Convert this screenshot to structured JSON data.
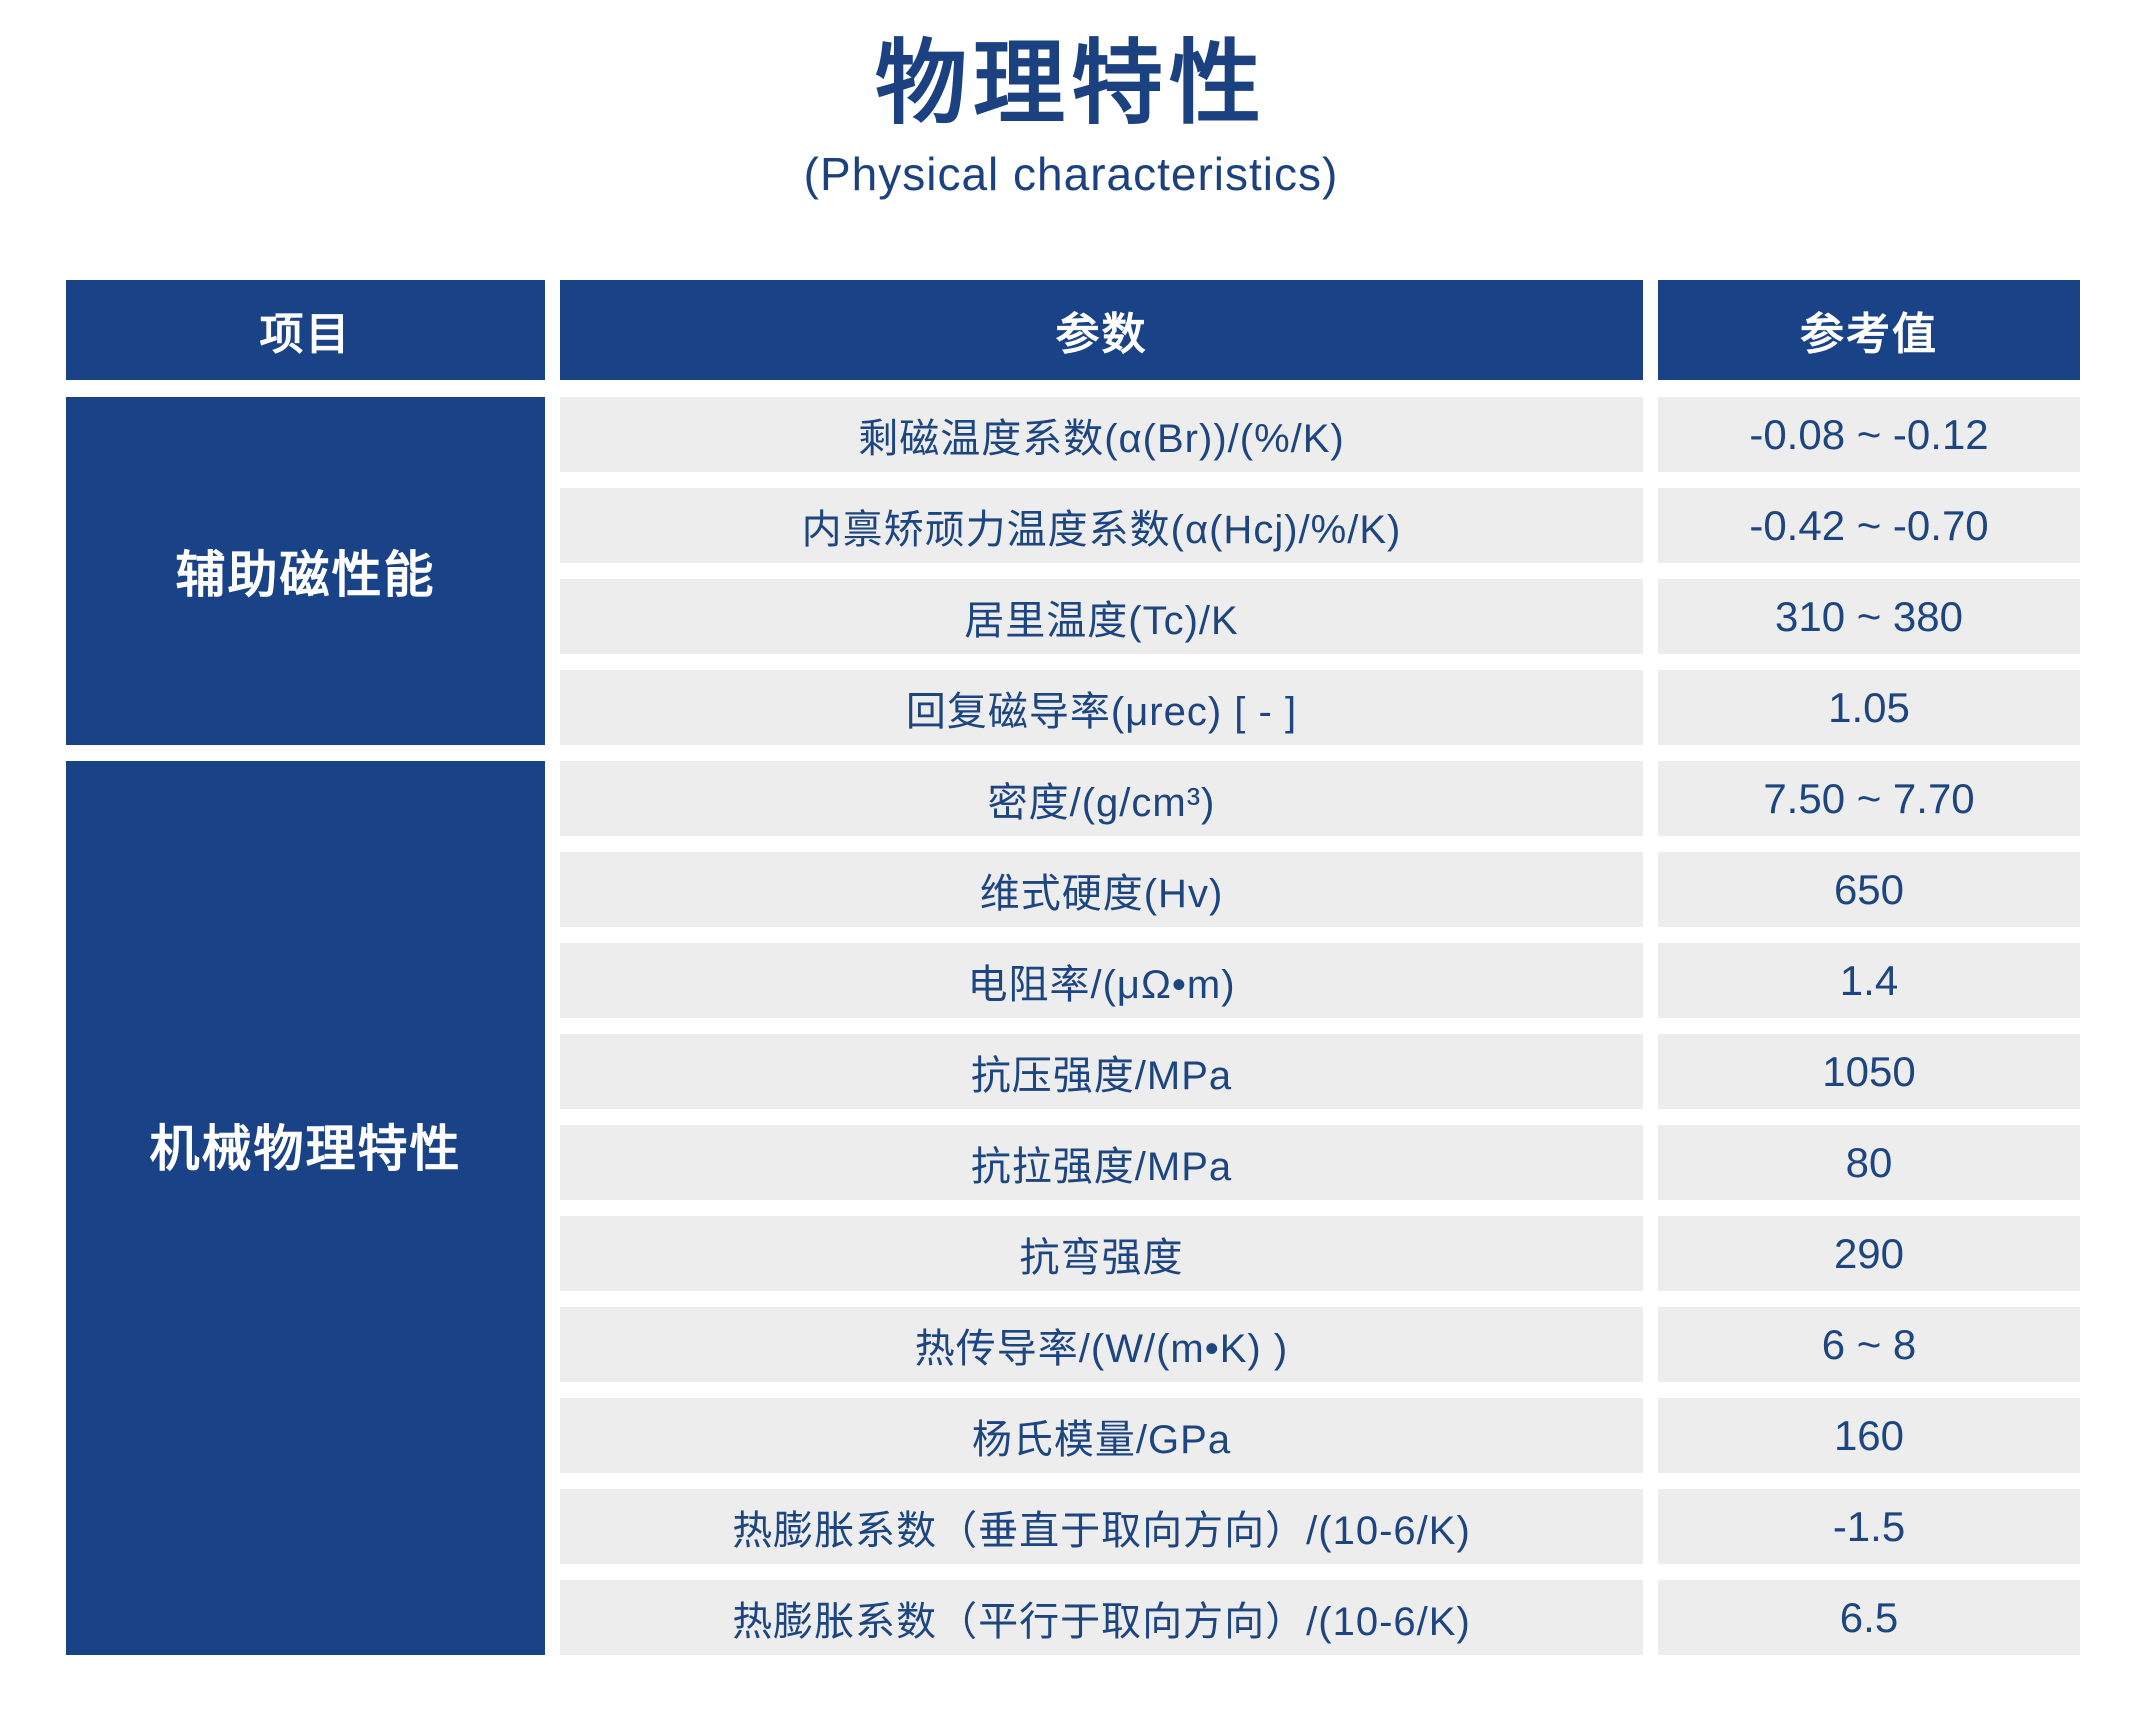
{
  "title": {
    "zh": "物理特性",
    "en": "(Physical characteristics)"
  },
  "colors": {
    "primary_blue": "#1a4287",
    "row_gray": "#ededed",
    "text_navy": "#1d4580",
    "title_navy": "#1c4180"
  },
  "table": {
    "headers": [
      "项目",
      "参数",
      "参考值"
    ],
    "groups": [
      {
        "label": "辅助磁性能",
        "rows_spanned": 4
      },
      {
        "label": "机械物理特性",
        "rows_spanned": 10
      }
    ],
    "rows": [
      {
        "param": "剩磁温度系数(α(Br))/(%/K)",
        "value": "-0.08 ~ -0.12"
      },
      {
        "param": "内禀矫顽力温度系数(α(Hcj)/%/K)",
        "value": "-0.42 ~ -0.70"
      },
      {
        "param": "居里温度(Tc)/K",
        "value": "310 ~ 380"
      },
      {
        "param": "回复磁导率(μrec) [ - ]",
        "value": "1.05"
      },
      {
        "param": "密度/(g/cm³)",
        "value": "7.50 ~ 7.70"
      },
      {
        "param": "维式硬度(Hv)",
        "value": "650"
      },
      {
        "param": "电阻率/(μΩ•m)",
        "value": "1.4"
      },
      {
        "param": "抗压强度/MPa",
        "value": "1050"
      },
      {
        "param": "抗拉强度/MPa",
        "value": "80"
      },
      {
        "param": "抗弯强度",
        "value": "290"
      },
      {
        "param": "热传导率/(W/(m•K) )",
        "value": "6 ~ 8"
      },
      {
        "param": "杨氏模量/GPa",
        "value": "160"
      },
      {
        "param": "热膨胀系数（垂直于取向方向）/(10-6/K)",
        "value": "-1.5"
      },
      {
        "param": "热膨胀系数（平行于取向方向）/(10-6/K)",
        "value": "6.5"
      }
    ]
  }
}
